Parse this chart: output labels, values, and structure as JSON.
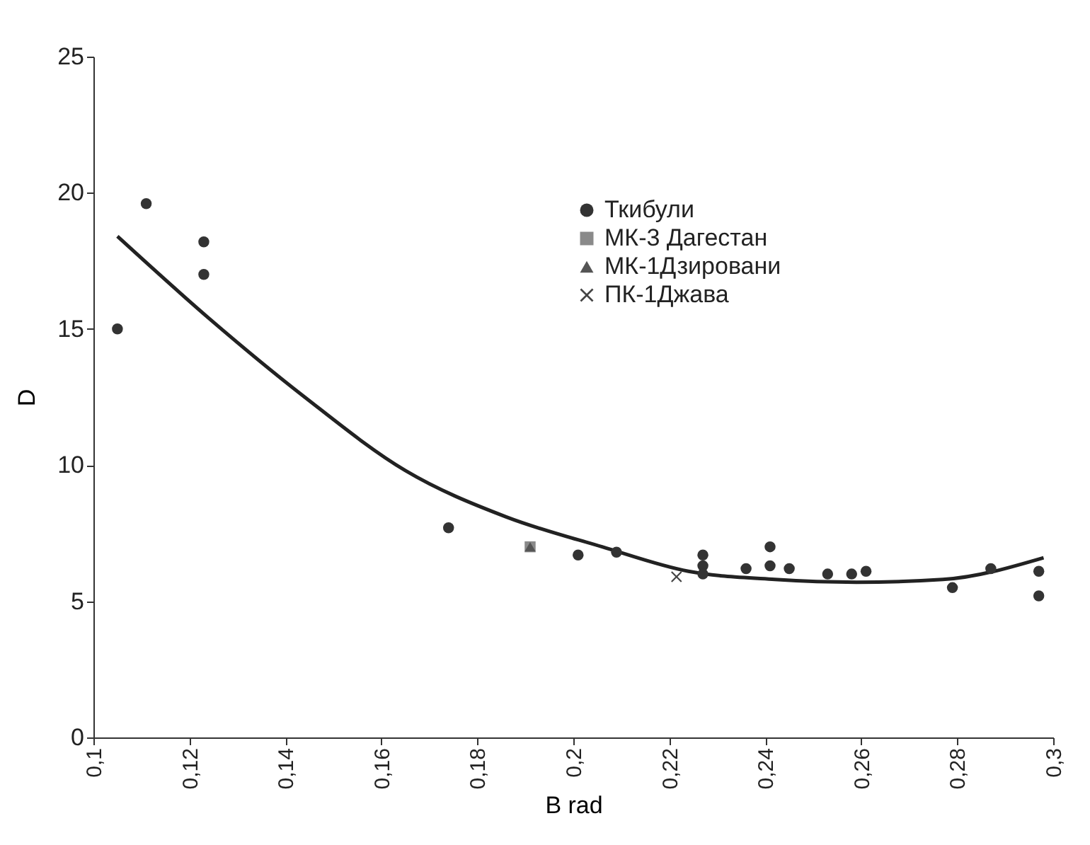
{
  "chart_data": {
    "type": "scatter",
    "xlabel": "B rad",
    "ylabel": "D",
    "xlim": [
      0.1,
      0.3
    ],
    "ylim": [
      0,
      25
    ],
    "xticks": [
      {
        "value": 0.1,
        "label": "0,1"
      },
      {
        "value": 0.12,
        "label": "0,12"
      },
      {
        "value": 0.14,
        "label": "0,14"
      },
      {
        "value": 0.16,
        "label": "0,16"
      },
      {
        "value": 0.18,
        "label": "0,18"
      },
      {
        "value": 0.2,
        "label": "0,2"
      },
      {
        "value": 0.22,
        "label": "0,22"
      },
      {
        "value": 0.24,
        "label": "0,24"
      },
      {
        "value": 0.26,
        "label": "0,26"
      },
      {
        "value": 0.28,
        "label": "0,28"
      },
      {
        "value": 0.3,
        "label": "0,3"
      }
    ],
    "yticks": [
      0,
      5,
      10,
      15,
      20,
      25
    ],
    "grid": false,
    "legend": "top right",
    "series": [
      {
        "name": "Ткибули",
        "color": "#333333",
        "marker": "circle",
        "x": [
          0.105,
          0.111,
          0.123,
          0.123,
          0.174,
          0.201,
          0.209,
          0.227,
          0.227,
          0.227,
          0.236,
          0.241,
          0.241,
          0.245,
          0.253,
          0.258,
          0.261,
          0.279,
          0.287,
          0.297,
          0.297
        ],
        "values": [
          15.0,
          19.6,
          18.2,
          17.0,
          7.7,
          6.7,
          6.8,
          6.7,
          6.3,
          6.0,
          6.2,
          7.0,
          6.3,
          6.2,
          6.0,
          6.0,
          6.1,
          5.5,
          6.2,
          6.1,
          5.2
        ]
      },
      {
        "name": "МК-3 Дагестан",
        "color": "#8a8a8a",
        "marker": "square",
        "x": [
          0.191
        ],
        "values": [
          7.0
        ]
      },
      {
        "name": "МК-1Дзировани",
        "color": "#555555",
        "marker": "triangle",
        "x": [
          0.191
        ],
        "values": [
          7.0
        ]
      },
      {
        "name": "ПК-1Джава",
        "color": "#444444",
        "marker": "cross",
        "x": [
          0.2215
        ],
        "values": [
          5.9
        ]
      },
      {
        "type": "line",
        "color": "#222222",
        "x": [
          0.105,
          0.124,
          0.144,
          0.165,
          0.186,
          0.206,
          0.224,
          0.242,
          0.259,
          0.277,
          0.298
        ],
        "values": [
          18.4,
          15.4,
          12.5,
          9.8,
          8.1,
          7.0,
          6.1,
          5.8,
          5.7,
          5.8,
          6.6
        ]
      }
    ]
  }
}
